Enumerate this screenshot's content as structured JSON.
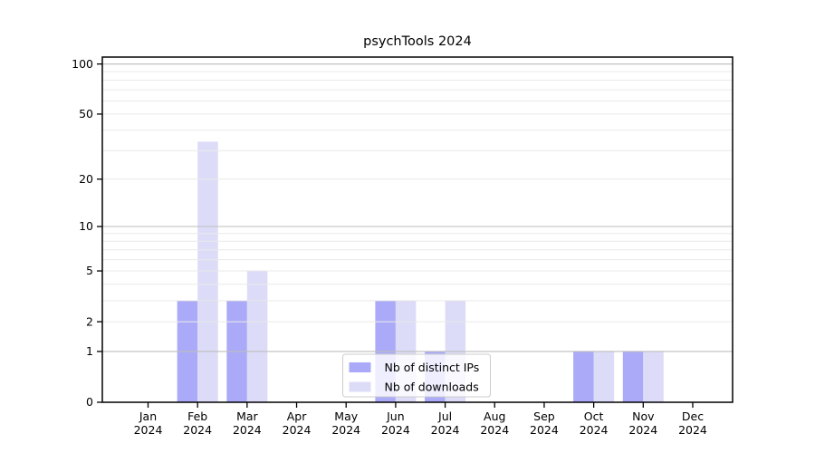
{
  "figure": {
    "background": "#ffffff"
  },
  "chart_data": {
    "type": "bar",
    "title": "psychTools 2024",
    "categories": [
      "Jan 2024",
      "Feb 2024",
      "Mar 2024",
      "Apr 2024",
      "May 2024",
      "Jun 2024",
      "Jul 2024",
      "Aug 2024",
      "Sep 2024",
      "Oct 2024",
      "Nov 2024",
      "Dec 2024"
    ],
    "x_tick_line1": [
      "Jan",
      "Feb",
      "Mar",
      "Apr",
      "May",
      "Jun",
      "Jul",
      "Aug",
      "Sep",
      "Oct",
      "Nov",
      "Dec"
    ],
    "x_tick_line2": "2024",
    "series": [
      {
        "name": "Nb of distinct IPs",
        "color": "#aaaaf8",
        "values": [
          0,
          3,
          3,
          0,
          0,
          3,
          1,
          0,
          0,
          1,
          1,
          0
        ]
      },
      {
        "name": "Nb of downloads",
        "color": "#dcdcf8",
        "values": [
          0,
          34,
          5,
          0,
          0,
          3,
          3,
          0,
          0,
          1,
          1,
          0
        ]
      }
    ],
    "y_ticks": [
      0,
      1,
      2,
      5,
      10,
      20,
      50,
      100
    ],
    "y_scale": "log10(1+y)",
    "ylim": [
      0,
      110
    ],
    "grid": true,
    "legend_position": "lower center",
    "colors": {
      "major_grid": "#bdbdbd",
      "minor_grid": "#e9e9e9",
      "axis": "#000000",
      "legend_border": "#cccccc",
      "legend_background": "rgba(255,255,255,0.8)"
    }
  }
}
